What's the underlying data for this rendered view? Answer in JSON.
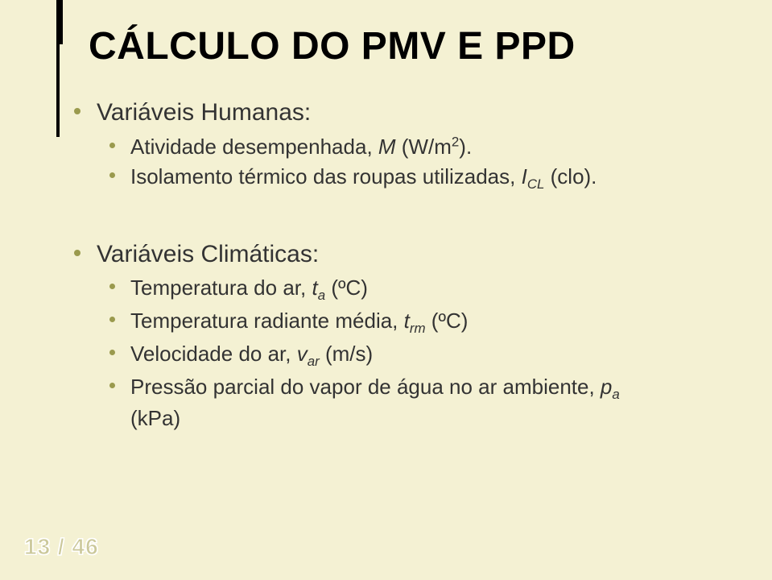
{
  "slide": {
    "title": "CÁLCULO DO PMV E PPD",
    "section1_heading": "Variáveis Humanas:",
    "section1_items": {
      "activity_prefix": "Atividade desempenhada, ",
      "activity_var": "M",
      "activity_unit_open": " (W/m",
      "activity_unit_exp": "2",
      "activity_unit_close": ").",
      "insulation_prefix": "Isolamento térmico das roupas utilizadas, ",
      "insulation_var": "I",
      "insulation_sub": "CL",
      "insulation_unit": " (clo)."
    },
    "section2_heading": "Variáveis Climáticas:",
    "section2_items": {
      "air_temp_prefix": "Temperatura do ar, ",
      "air_temp_var": "t",
      "air_temp_sub": "a",
      "air_temp_unit": " (ºC)",
      "rad_temp_prefix": "Temperatura radiante média, ",
      "rad_temp_var": "t",
      "rad_temp_sub": "rm",
      "rad_temp_unit": " (ºC)",
      "air_vel_prefix": "Velocidade do ar, ",
      "air_vel_var": "v",
      "air_vel_sub": "ar",
      "air_vel_unit": " (m/s)",
      "vapor_prefix": "Pressão parcial do vapor de água no ar ambiente, ",
      "vapor_var": "p",
      "vapor_sub": "a",
      "vapor_unit_line2": "(kPa)"
    },
    "page_current": "13",
    "page_sep": " / ",
    "page_total": "46"
  },
  "colors": {
    "background": "#f4f1d3",
    "bullet": "#9a9a4d",
    "title_bar": "#000000",
    "text": "#333333",
    "pagenum_fill": "#cbc89a",
    "pagenum_outline": "#ffffff"
  },
  "fonts": {
    "title_size_pt": 36,
    "level1_size_pt": 23,
    "level2_size_pt": 20,
    "pagenum_size_pt": 21
  }
}
